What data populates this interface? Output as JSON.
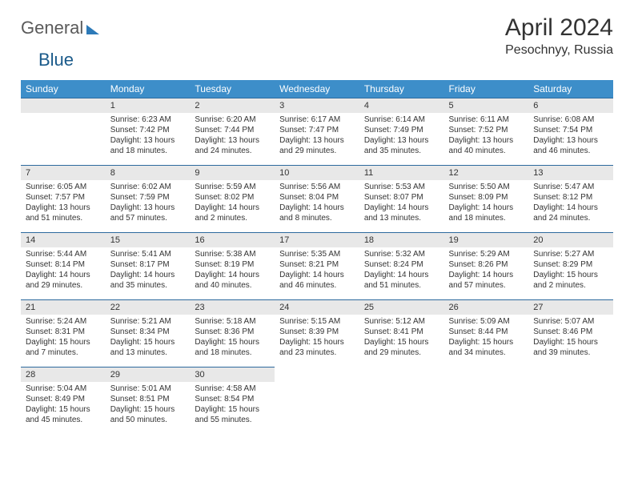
{
  "logo": {
    "text1": "General",
    "text2": "Blue"
  },
  "title": "April 2024",
  "location": "Pesochnyy, Russia",
  "colors": {
    "header_bg": "#3d8ec9",
    "header_text": "#ffffff",
    "daynum_bg": "#e8e8e8",
    "row_border": "#2d6a9e",
    "body_text": "#333333",
    "logo_gray": "#5a5a5a",
    "logo_blue": "#1a5a8a"
  },
  "day_headers": [
    "Sunday",
    "Monday",
    "Tuesday",
    "Wednesday",
    "Thursday",
    "Friday",
    "Saturday"
  ],
  "weeks": [
    [
      {
        "num": "",
        "lines": []
      },
      {
        "num": "1",
        "lines": [
          "Sunrise: 6:23 AM",
          "Sunset: 7:42 PM",
          "Daylight: 13 hours",
          "and 18 minutes."
        ]
      },
      {
        "num": "2",
        "lines": [
          "Sunrise: 6:20 AM",
          "Sunset: 7:44 PM",
          "Daylight: 13 hours",
          "and 24 minutes."
        ]
      },
      {
        "num": "3",
        "lines": [
          "Sunrise: 6:17 AM",
          "Sunset: 7:47 PM",
          "Daylight: 13 hours",
          "and 29 minutes."
        ]
      },
      {
        "num": "4",
        "lines": [
          "Sunrise: 6:14 AM",
          "Sunset: 7:49 PM",
          "Daylight: 13 hours",
          "and 35 minutes."
        ]
      },
      {
        "num": "5",
        "lines": [
          "Sunrise: 6:11 AM",
          "Sunset: 7:52 PM",
          "Daylight: 13 hours",
          "and 40 minutes."
        ]
      },
      {
        "num": "6",
        "lines": [
          "Sunrise: 6:08 AM",
          "Sunset: 7:54 PM",
          "Daylight: 13 hours",
          "and 46 minutes."
        ]
      }
    ],
    [
      {
        "num": "7",
        "lines": [
          "Sunrise: 6:05 AM",
          "Sunset: 7:57 PM",
          "Daylight: 13 hours",
          "and 51 minutes."
        ]
      },
      {
        "num": "8",
        "lines": [
          "Sunrise: 6:02 AM",
          "Sunset: 7:59 PM",
          "Daylight: 13 hours",
          "and 57 minutes."
        ]
      },
      {
        "num": "9",
        "lines": [
          "Sunrise: 5:59 AM",
          "Sunset: 8:02 PM",
          "Daylight: 14 hours",
          "and 2 minutes."
        ]
      },
      {
        "num": "10",
        "lines": [
          "Sunrise: 5:56 AM",
          "Sunset: 8:04 PM",
          "Daylight: 14 hours",
          "and 8 minutes."
        ]
      },
      {
        "num": "11",
        "lines": [
          "Sunrise: 5:53 AM",
          "Sunset: 8:07 PM",
          "Daylight: 14 hours",
          "and 13 minutes."
        ]
      },
      {
        "num": "12",
        "lines": [
          "Sunrise: 5:50 AM",
          "Sunset: 8:09 PM",
          "Daylight: 14 hours",
          "and 18 minutes."
        ]
      },
      {
        "num": "13",
        "lines": [
          "Sunrise: 5:47 AM",
          "Sunset: 8:12 PM",
          "Daylight: 14 hours",
          "and 24 minutes."
        ]
      }
    ],
    [
      {
        "num": "14",
        "lines": [
          "Sunrise: 5:44 AM",
          "Sunset: 8:14 PM",
          "Daylight: 14 hours",
          "and 29 minutes."
        ]
      },
      {
        "num": "15",
        "lines": [
          "Sunrise: 5:41 AM",
          "Sunset: 8:17 PM",
          "Daylight: 14 hours",
          "and 35 minutes."
        ]
      },
      {
        "num": "16",
        "lines": [
          "Sunrise: 5:38 AM",
          "Sunset: 8:19 PM",
          "Daylight: 14 hours",
          "and 40 minutes."
        ]
      },
      {
        "num": "17",
        "lines": [
          "Sunrise: 5:35 AM",
          "Sunset: 8:21 PM",
          "Daylight: 14 hours",
          "and 46 minutes."
        ]
      },
      {
        "num": "18",
        "lines": [
          "Sunrise: 5:32 AM",
          "Sunset: 8:24 PM",
          "Daylight: 14 hours",
          "and 51 minutes."
        ]
      },
      {
        "num": "19",
        "lines": [
          "Sunrise: 5:29 AM",
          "Sunset: 8:26 PM",
          "Daylight: 14 hours",
          "and 57 minutes."
        ]
      },
      {
        "num": "20",
        "lines": [
          "Sunrise: 5:27 AM",
          "Sunset: 8:29 PM",
          "Daylight: 15 hours",
          "and 2 minutes."
        ]
      }
    ],
    [
      {
        "num": "21",
        "lines": [
          "Sunrise: 5:24 AM",
          "Sunset: 8:31 PM",
          "Daylight: 15 hours",
          "and 7 minutes."
        ]
      },
      {
        "num": "22",
        "lines": [
          "Sunrise: 5:21 AM",
          "Sunset: 8:34 PM",
          "Daylight: 15 hours",
          "and 13 minutes."
        ]
      },
      {
        "num": "23",
        "lines": [
          "Sunrise: 5:18 AM",
          "Sunset: 8:36 PM",
          "Daylight: 15 hours",
          "and 18 minutes."
        ]
      },
      {
        "num": "24",
        "lines": [
          "Sunrise: 5:15 AM",
          "Sunset: 8:39 PM",
          "Daylight: 15 hours",
          "and 23 minutes."
        ]
      },
      {
        "num": "25",
        "lines": [
          "Sunrise: 5:12 AM",
          "Sunset: 8:41 PM",
          "Daylight: 15 hours",
          "and 29 minutes."
        ]
      },
      {
        "num": "26",
        "lines": [
          "Sunrise: 5:09 AM",
          "Sunset: 8:44 PM",
          "Daylight: 15 hours",
          "and 34 minutes."
        ]
      },
      {
        "num": "27",
        "lines": [
          "Sunrise: 5:07 AM",
          "Sunset: 8:46 PM",
          "Daylight: 15 hours",
          "and 39 minutes."
        ]
      }
    ],
    [
      {
        "num": "28",
        "lines": [
          "Sunrise: 5:04 AM",
          "Sunset: 8:49 PM",
          "Daylight: 15 hours",
          "and 45 minutes."
        ]
      },
      {
        "num": "29",
        "lines": [
          "Sunrise: 5:01 AM",
          "Sunset: 8:51 PM",
          "Daylight: 15 hours",
          "and 50 minutes."
        ]
      },
      {
        "num": "30",
        "lines": [
          "Sunrise: 4:58 AM",
          "Sunset: 8:54 PM",
          "Daylight: 15 hours",
          "and 55 minutes."
        ]
      },
      {
        "num": "",
        "lines": []
      },
      {
        "num": "",
        "lines": []
      },
      {
        "num": "",
        "lines": []
      },
      {
        "num": "",
        "lines": []
      }
    ]
  ]
}
